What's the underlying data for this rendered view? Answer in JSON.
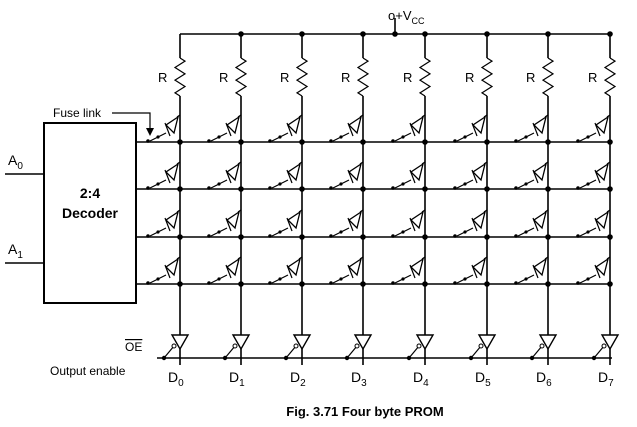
{
  "supply": {
    "symbol": "o+V",
    "subscript": "CC"
  },
  "decoder": {
    "line1": "2:4",
    "line2": "Decoder"
  },
  "inputs": [
    {
      "letter": "A",
      "sub": "0"
    },
    {
      "letter": "A",
      "sub": "1"
    }
  ],
  "fuse_label": "Fuse link",
  "resistor_label": "R",
  "oe": {
    "label": "OE",
    "caption": "Output enable"
  },
  "outputs": [
    {
      "letter": "D",
      "sub": "0"
    },
    {
      "letter": "D",
      "sub": "1"
    },
    {
      "letter": "D",
      "sub": "2"
    },
    {
      "letter": "D",
      "sub": "3"
    },
    {
      "letter": "D",
      "sub": "4"
    },
    {
      "letter": "D",
      "sub": "5"
    },
    {
      "letter": "D",
      "sub": "6"
    },
    {
      "letter": "D",
      "sub": "7"
    }
  ],
  "caption": "Fig. 3.71  Four byte PROM"
}
